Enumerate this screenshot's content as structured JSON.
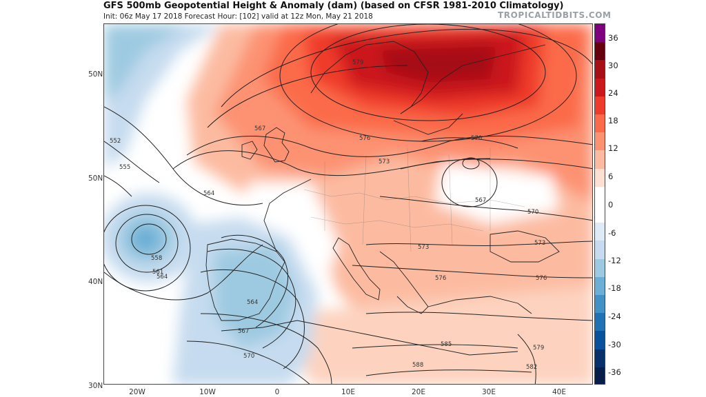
{
  "header": {
    "title": "GFS 500mb Geopotential Height & Anomaly (dam) (based on CFSR 1981-2010 Climatology)",
    "subtitle": "Init: 06z May 17 2018   Forecast Hour: [102]   valid at 12z Mon, May 21 2018",
    "brand": "TROPICALTIDBITS.COM"
  },
  "map": {
    "projection": "lat-lon",
    "lat_labels": [
      "50N",
      "50N",
      "40N",
      "30N"
    ],
    "lon_labels": [
      "20W",
      "10W",
      "0",
      "10E",
      "20E",
      "30E",
      "40E"
    ],
    "contour_labels": [
      "579",
      "576",
      "570",
      "567",
      "552",
      "555",
      "564",
      "573",
      "567",
      "570",
      "573",
      "558",
      "561",
      "564",
      "564",
      "567",
      "570",
      "573",
      "576",
      "585",
      "588",
      "576",
      "579",
      "582"
    ]
  },
  "colorbar": {
    "labels": [
      "36",
      "30",
      "24",
      "18",
      "12",
      "6",
      "0",
      "-6",
      "-12",
      "-18",
      "-24",
      "-30",
      "-36"
    ],
    "colors": [
      "#7f007f",
      "#67000d",
      "#a50f15",
      "#cb181d",
      "#ef3b2c",
      "#fb6a4a",
      "#fc9272",
      "#fcbba1",
      "#fee0d2",
      "#ffffff",
      "#ffffff",
      "#deebf7",
      "#c6dbef",
      "#9ecae1",
      "#6baed6",
      "#4292c6",
      "#2171b5",
      "#08519c",
      "#08306b",
      "#061f4a"
    ]
  }
}
